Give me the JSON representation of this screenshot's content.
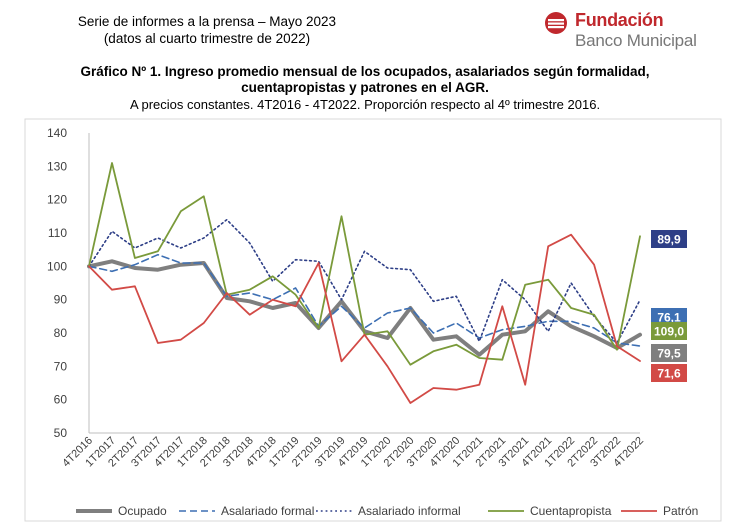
{
  "report": {
    "series_line": "Serie de informes a la prensa – Mayo 2023",
    "period_line": "(datos al cuarto trimestre de 2022)"
  },
  "logo": {
    "line1": "Fundación",
    "line2": "Banco Municipal",
    "color": "#c0282d"
  },
  "chart_data": {
    "type": "line",
    "title": "Gráfico Nº 1. Ingreso promedio mensual de los ocupados, asalariados según formalidad, cuentapropistas y patrones en el AGR.",
    "subtitle": "A precios constantes. 4T2016 - 4T2022. Proporción respecto al 4º trimestre 2016.",
    "xlabel": "",
    "ylabel": "",
    "ylim": [
      50,
      140
    ],
    "yticks": [
      50,
      60,
      70,
      80,
      90,
      100,
      110,
      120,
      130,
      140
    ],
    "grid": false,
    "legend_position": "bottom",
    "categories": [
      "4T2016",
      "1T2017",
      "2T2017",
      "3T2017",
      "4T2017",
      "1T2018",
      "2T2018",
      "3T2018",
      "4T2018",
      "1T2019",
      "2T2019",
      "3T2019",
      "4T2019",
      "1T2020",
      "2T2020",
      "3T2020",
      "4T2020",
      "1T2021",
      "2T2021",
      "3T2021",
      "4T2021",
      "1T2022",
      "2T2022",
      "3T2022",
      "4T2022"
    ],
    "series": [
      {
        "name": "Ocupado",
        "color": "#7f7f7f",
        "style": "solid-thick",
        "end_label": "79,5",
        "values": [
          100,
          101.5,
          99.5,
          99,
          100.5,
          101,
          90.5,
          89.5,
          87.5,
          89,
          81.5,
          89.5,
          80.5,
          78.5,
          87.5,
          78,
          79,
          73.5,
          79.5,
          80.5,
          86.5,
          82,
          79,
          75.5,
          79.5
        ]
      },
      {
        "name": "Asalariado formal",
        "color": "#3d6fb3",
        "style": "dashed",
        "end_label": "76,1",
        "values": [
          100,
          98.5,
          100.5,
          103.5,
          101,
          101,
          91,
          92,
          90,
          93.5,
          82,
          88,
          81.5,
          86,
          87.5,
          80,
          83,
          78.5,
          81,
          82,
          83.5,
          83.5,
          81.5,
          77,
          76.1
        ]
      },
      {
        "name": "Asalariado informal",
        "color": "#2e3f87",
        "style": "dotted",
        "end_label": "89,9",
        "values": [
          100,
          110.5,
          105.5,
          108.5,
          105.5,
          108.5,
          114,
          107,
          95.5,
          102,
          101.5,
          90,
          104.5,
          99.5,
          99,
          89.5,
          91,
          77.5,
          96,
          90,
          80.5,
          95,
          85,
          77,
          89.9
        ]
      },
      {
        "name": "Cuentapropista",
        "color": "#7a9a3a",
        "style": "solid",
        "end_label": "109,0",
        "values": [
          100,
          131,
          102.5,
          104.5,
          116.5,
          121,
          91.5,
          93,
          97,
          91.5,
          81.5,
          115,
          79.5,
          80.5,
          70.5,
          74.5,
          76.5,
          72.5,
          72,
          94.5,
          96,
          87.5,
          85.5,
          75,
          109
        ]
      },
      {
        "name": "Patrón",
        "color": "#d24a46",
        "style": "solid",
        "end_label": "71,6",
        "values": [
          100,
          93,
          94,
          77,
          78,
          83,
          92,
          85.5,
          90,
          88,
          101,
          71.5,
          79.5,
          70,
          59,
          63.5,
          63,
          64.5,
          88,
          64.5,
          106,
          109.5,
          100.5,
          76,
          71.6
        ]
      }
    ]
  }
}
